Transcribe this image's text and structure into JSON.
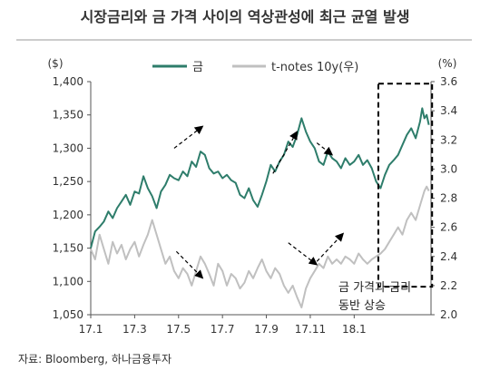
{
  "chart_data": {
    "type": "line",
    "title": "시장금리와 금 가격 사이의 역상관성에 최근 균열 발생",
    "left_unit": "($)",
    "right_unit": "(%)",
    "source": "자료: Bloomberg, 하나금융투자",
    "annotation": [
      "금 가격과 금리",
      "동반 상승"
    ],
    "x_ticks": [
      "17.1",
      "17.3",
      "17.5",
      "17.7",
      "17.9",
      "17.11",
      "18.1"
    ],
    "x_range": [
      0,
      15.5
    ],
    "left_axis": {
      "range": [
        1050,
        1400
      ],
      "ticks": [
        "1,050",
        "1,100",
        "1,150",
        "1,200",
        "1,250",
        "1,300",
        "1,350",
        "1,400"
      ]
    },
    "right_axis": {
      "range": [
        2.0,
        3.6
      ],
      "ticks": [
        "2.0",
        "2.2",
        "2.4",
        "2.6",
        "2.8",
        "3.0",
        "3.2",
        "3.4",
        "3.6"
      ]
    },
    "series": [
      {
        "name": "금",
        "axis": "left",
        "color": "#2e7d6b",
        "points": [
          [
            0.0,
            1150
          ],
          [
            0.2,
            1175
          ],
          [
            0.4,
            1182
          ],
          [
            0.6,
            1190
          ],
          [
            0.8,
            1205
          ],
          [
            1.0,
            1195
          ],
          [
            1.2,
            1210
          ],
          [
            1.4,
            1220
          ],
          [
            1.6,
            1230
          ],
          [
            1.8,
            1215
          ],
          [
            2.0,
            1235
          ],
          [
            2.2,
            1232
          ],
          [
            2.4,
            1258
          ],
          [
            2.6,
            1240
          ],
          [
            2.8,
            1228
          ],
          [
            3.0,
            1210
          ],
          [
            3.2,
            1235
          ],
          [
            3.4,
            1245
          ],
          [
            3.6,
            1260
          ],
          [
            3.8,
            1255
          ],
          [
            4.0,
            1252
          ],
          [
            4.2,
            1265
          ],
          [
            4.4,
            1258
          ],
          [
            4.6,
            1280
          ],
          [
            4.8,
            1272
          ],
          [
            5.0,
            1295
          ],
          [
            5.2,
            1290
          ],
          [
            5.4,
            1270
          ],
          [
            5.6,
            1262
          ],
          [
            5.8,
            1265
          ],
          [
            6.0,
            1255
          ],
          [
            6.2,
            1260
          ],
          [
            6.4,
            1252
          ],
          [
            6.6,
            1248
          ],
          [
            6.8,
            1230
          ],
          [
            7.0,
            1225
          ],
          [
            7.2,
            1240
          ],
          [
            7.4,
            1222
          ],
          [
            7.6,
            1212
          ],
          [
            7.8,
            1230
          ],
          [
            8.0,
            1250
          ],
          [
            8.2,
            1275
          ],
          [
            8.4,
            1265
          ],
          [
            8.6,
            1280
          ],
          [
            8.8,
            1290
          ],
          [
            9.0,
            1310
          ],
          [
            9.2,
            1302
          ],
          [
            9.4,
            1320
          ],
          [
            9.6,
            1345
          ],
          [
            9.8,
            1325
          ],
          [
            10.0,
            1310
          ],
          [
            10.2,
            1300
          ],
          [
            10.4,
            1280
          ],
          [
            10.6,
            1275
          ],
          [
            10.8,
            1295
          ],
          [
            11.0,
            1285
          ],
          [
            11.2,
            1280
          ],
          [
            11.4,
            1270
          ],
          [
            11.6,
            1285
          ],
          [
            11.8,
            1275
          ],
          [
            12.0,
            1280
          ],
          [
            12.2,
            1290
          ],
          [
            12.4,
            1275
          ],
          [
            12.6,
            1282
          ],
          [
            12.8,
            1270
          ],
          [
            13.0,
            1250
          ],
          [
            13.2,
            1240
          ],
          [
            13.4,
            1260
          ],
          [
            13.6,
            1275
          ],
          [
            13.8,
            1282
          ],
          [
            14.0,
            1290
          ],
          [
            14.2,
            1305
          ],
          [
            14.4,
            1320
          ],
          [
            14.6,
            1330
          ],
          [
            14.8,
            1315
          ],
          [
            15.0,
            1340
          ],
          [
            15.1,
            1360
          ],
          [
            15.2,
            1345
          ],
          [
            15.3,
            1350
          ],
          [
            15.4,
            1335
          ]
        ]
      },
      {
        "name": "t-notes 10y(우)",
        "axis": "right",
        "color": "#c0c0c0",
        "points": [
          [
            0.0,
            2.45
          ],
          [
            0.2,
            2.38
          ],
          [
            0.4,
            2.55
          ],
          [
            0.6,
            2.45
          ],
          [
            0.8,
            2.35
          ],
          [
            1.0,
            2.5
          ],
          [
            1.2,
            2.42
          ],
          [
            1.4,
            2.48
          ],
          [
            1.6,
            2.38
          ],
          [
            1.8,
            2.45
          ],
          [
            2.0,
            2.5
          ],
          [
            2.2,
            2.4
          ],
          [
            2.4,
            2.48
          ],
          [
            2.6,
            2.55
          ],
          [
            2.8,
            2.65
          ],
          [
            3.0,
            2.55
          ],
          [
            3.2,
            2.45
          ],
          [
            3.4,
            2.35
          ],
          [
            3.6,
            2.4
          ],
          [
            3.8,
            2.3
          ],
          [
            4.0,
            2.25
          ],
          [
            4.2,
            2.32
          ],
          [
            4.4,
            2.28
          ],
          [
            4.6,
            2.2
          ],
          [
            4.8,
            2.3
          ],
          [
            5.0,
            2.4
          ],
          [
            5.2,
            2.35
          ],
          [
            5.4,
            2.28
          ],
          [
            5.6,
            2.2
          ],
          [
            5.8,
            2.35
          ],
          [
            6.0,
            2.3
          ],
          [
            6.2,
            2.2
          ],
          [
            6.4,
            2.28
          ],
          [
            6.6,
            2.25
          ],
          [
            6.8,
            2.18
          ],
          [
            7.0,
            2.22
          ],
          [
            7.2,
            2.3
          ],
          [
            7.4,
            2.25
          ],
          [
            7.6,
            2.32
          ],
          [
            7.8,
            2.38
          ],
          [
            8.0,
            2.3
          ],
          [
            8.2,
            2.25
          ],
          [
            8.4,
            2.32
          ],
          [
            8.6,
            2.28
          ],
          [
            8.8,
            2.2
          ],
          [
            9.0,
            2.15
          ],
          [
            9.2,
            2.2
          ],
          [
            9.4,
            2.12
          ],
          [
            9.6,
            2.05
          ],
          [
            9.8,
            2.18
          ],
          [
            10.0,
            2.25
          ],
          [
            10.2,
            2.3
          ],
          [
            10.4,
            2.35
          ],
          [
            10.6,
            2.32
          ],
          [
            10.8,
            2.4
          ],
          [
            11.0,
            2.35
          ],
          [
            11.2,
            2.38
          ],
          [
            11.4,
            2.35
          ],
          [
            11.6,
            2.4
          ],
          [
            11.8,
            2.38
          ],
          [
            12.0,
            2.35
          ],
          [
            12.2,
            2.42
          ],
          [
            12.4,
            2.38
          ],
          [
            12.6,
            2.35
          ],
          [
            12.8,
            2.38
          ],
          [
            13.0,
            2.4
          ],
          [
            13.2,
            2.42
          ],
          [
            13.4,
            2.45
          ],
          [
            13.6,
            2.5
          ],
          [
            13.8,
            2.55
          ],
          [
            14.0,
            2.6
          ],
          [
            14.2,
            2.55
          ],
          [
            14.4,
            2.65
          ],
          [
            14.6,
            2.7
          ],
          [
            14.8,
            2.65
          ],
          [
            15.0,
            2.75
          ],
          [
            15.1,
            2.8
          ],
          [
            15.2,
            2.85
          ],
          [
            15.3,
            2.88
          ],
          [
            15.4,
            2.85
          ]
        ]
      }
    ],
    "arrows": [
      {
        "points": [
          [
            3.8,
            1300
          ],
          [
            5.1,
            1333
          ]
        ]
      },
      {
        "points": [
          [
            3.9,
            1145
          ],
          [
            5.1,
            1105
          ]
        ]
      },
      {
        "points": [
          [
            8.3,
            1262
          ],
          [
            9.4,
            1325
          ]
        ]
      },
      {
        "points": [
          [
            10.3,
            1308
          ],
          [
            11.0,
            1290
          ]
        ]
      },
      {
        "points": [
          [
            9.0,
            1158
          ],
          [
            10.3,
            1125
          ]
        ]
      },
      {
        "points": [
          [
            10.3,
            1130
          ],
          [
            11.5,
            1172
          ]
        ]
      }
    ],
    "highlight_box": {
      "x": [
        13.1,
        15.55
      ],
      "y": [
        1092,
        1397
      ]
    }
  }
}
